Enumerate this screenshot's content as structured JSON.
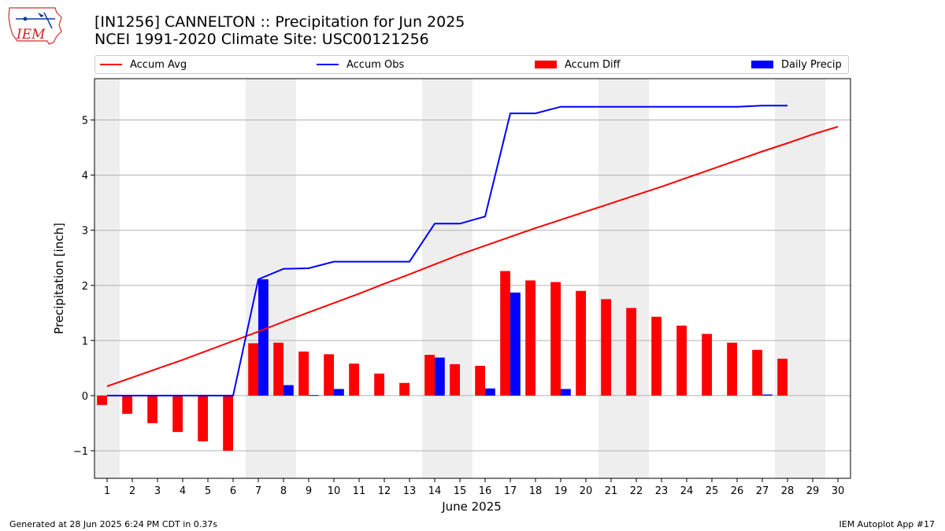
{
  "logo": {
    "text": "IEM",
    "icon": "iem-iowa-logo-icon"
  },
  "header": {
    "title": "[IN1256] CANNELTON :: Precipitation for Jun 2025",
    "subtitle": "NCEI 1991-2020 Climate Site: USC00121256"
  },
  "legend": [
    {
      "label": "Accum Avg",
      "kind": "line",
      "color": "#ff0000"
    },
    {
      "label": "Accum Obs",
      "kind": "line",
      "color": "#0000ff"
    },
    {
      "label": "Accum Diff",
      "kind": "bar",
      "color": "#ff0000"
    },
    {
      "label": "Daily Precip",
      "kind": "bar",
      "color": "#0000ff"
    }
  ],
  "footer": {
    "generated": "Generated at 28 Jun 2025 6:24 PM CDT in 0.37s",
    "app": "IEM Autoplot App #17"
  },
  "chart_data": {
    "type": "bar",
    "xlabel": "June 2025",
    "ylabel": "Precipitation [inch]",
    "xlim": [
      0.5,
      30.5
    ],
    "ylim": [
      -1.5,
      5.75
    ],
    "yticks": [
      -1,
      0,
      1,
      2,
      3,
      4,
      5
    ],
    "ytick_labels": [
      "−1",
      "0",
      "1",
      "2",
      "3",
      "4",
      "5"
    ],
    "xticks": [
      1,
      2,
      3,
      4,
      5,
      6,
      7,
      8,
      9,
      10,
      11,
      12,
      13,
      14,
      15,
      16,
      17,
      18,
      19,
      20,
      21,
      22,
      23,
      24,
      25,
      26,
      27,
      28,
      29,
      30
    ],
    "grid": "horizontal",
    "weekend_shading": [
      [
        0.5,
        1.5
      ],
      [
        6.5,
        8.5
      ],
      [
        13.5,
        15.5
      ],
      [
        20.5,
        22.5
      ],
      [
        27.5,
        29.5
      ]
    ],
    "shading_color": "#eeeeee",
    "accum_avg": {
      "name": "Accum Avg",
      "x": [
        1,
        2,
        3,
        4,
        5,
        6,
        7,
        8,
        9,
        10,
        11,
        12,
        13,
        14,
        15,
        16,
        17,
        18,
        19,
        20,
        21,
        22,
        23,
        24,
        25,
        26,
        27,
        28,
        29,
        30
      ],
      "values": [
        0.17,
        0.33,
        0.49,
        0.65,
        0.82,
        0.99,
        1.16,
        1.34,
        1.51,
        1.68,
        1.85,
        2.03,
        2.2,
        2.38,
        2.56,
        2.72,
        2.88,
        3.04,
        3.19,
        3.34,
        3.49,
        3.64,
        3.79,
        3.95,
        4.11,
        4.27,
        4.43,
        4.58,
        4.74,
        4.88
      ]
    },
    "accum_obs": {
      "name": "Accum Obs",
      "x": [
        1,
        2,
        3,
        4,
        5,
        6,
        7,
        8,
        9,
        10,
        11,
        12,
        13,
        14,
        15,
        16,
        17,
        18,
        19,
        20,
        21,
        22,
        23,
        24,
        25,
        26,
        27,
        28
      ],
      "values": [
        0,
        0,
        0,
        0,
        0,
        0,
        2.11,
        2.3,
        2.31,
        2.43,
        2.43,
        2.43,
        2.43,
        3.12,
        3.12,
        3.25,
        5.12,
        5.12,
        5.24,
        5.24,
        5.24,
        5.24,
        5.24,
        5.24,
        5.24,
        5.24,
        5.26,
        5.26
      ]
    },
    "accum_diff": {
      "name": "Accum Diff",
      "x": [
        1,
        2,
        3,
        4,
        5,
        6,
        7,
        8,
        9,
        10,
        11,
        12,
        13,
        14,
        15,
        16,
        17,
        18,
        19,
        20,
        21,
        22,
        23,
        24,
        25,
        26,
        27,
        28
      ],
      "values": [
        -0.17,
        -0.33,
        -0.5,
        -0.66,
        -0.83,
        -1.0,
        0.95,
        0.96,
        0.8,
        0.75,
        0.58,
        0.4,
        0.23,
        0.74,
        0.57,
        0.54,
        2.26,
        2.09,
        2.06,
        1.9,
        1.75,
        1.59,
        1.43,
        1.27,
        1.12,
        0.96,
        0.83,
        0.67
      ]
    },
    "daily_precip": {
      "name": "Daily Precip",
      "x": [
        1,
        2,
        3,
        4,
        5,
        6,
        7,
        8,
        9,
        10,
        11,
        12,
        13,
        14,
        15,
        16,
        17,
        18,
        19,
        20,
        21,
        22,
        23,
        24,
        25,
        26,
        27,
        28
      ],
      "values": [
        0,
        0,
        0,
        0,
        0,
        0,
        2.11,
        0.19,
        0.01,
        0.12,
        0,
        0,
        0,
        0.69,
        0,
        0.13,
        1.87,
        0,
        0.12,
        0,
        0,
        0,
        0,
        0,
        0,
        0,
        0.02,
        0
      ]
    }
  }
}
